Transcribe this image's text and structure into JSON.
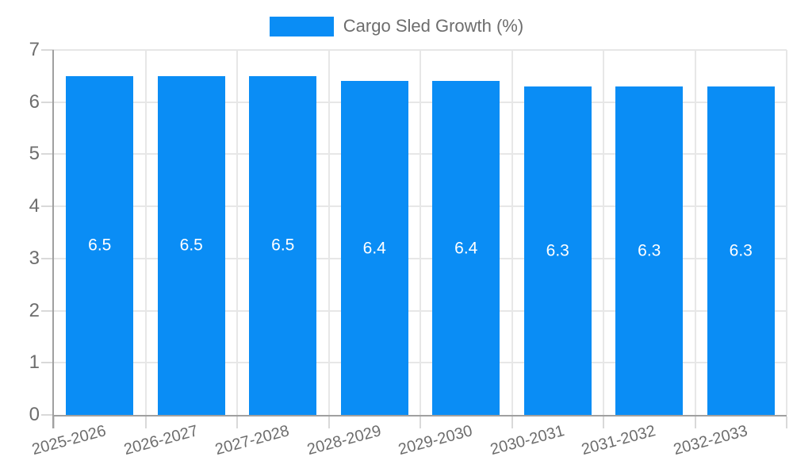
{
  "legend": {
    "label": "Cargo Sled Growth (%)"
  },
  "colors": {
    "bar": "#0a8df5",
    "bar_label": "#ffffff",
    "axis_line": "#a0a0a0",
    "gridline": "#e7e7e7",
    "tick": "#d9d9d9",
    "text": "#6d6d6d"
  },
  "chart_data": {
    "type": "bar",
    "title": "",
    "legend": [
      "Cargo Sled Growth (%)"
    ],
    "legend_position": "top-center",
    "categories": [
      "2025-2026",
      "2026-2027",
      "2027-2028",
      "2028-2029",
      "2029-2030",
      "2030-2031",
      "2031-2032",
      "2032-2033"
    ],
    "values": [
      6.5,
      6.5,
      6.5,
      6.4,
      6.4,
      6.3,
      6.3,
      6.3
    ],
    "bar_labels": [
      "6.5",
      "6.5",
      "6.5",
      "6.4",
      "6.4",
      "6.3",
      "6.3",
      "6.3"
    ],
    "xlabel": "",
    "ylabel": "",
    "ylim": [
      0,
      7
    ],
    "yticks": [
      0,
      1,
      2,
      3,
      4,
      5,
      6,
      7
    ],
    "grid": true,
    "x_tick_rotation_deg": -15
  }
}
